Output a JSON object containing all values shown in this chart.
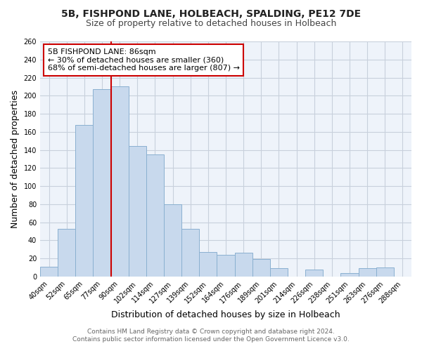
{
  "title": "5B, FISHPOND LANE, HOLBEACH, SPALDING, PE12 7DE",
  "subtitle": "Size of property relative to detached houses in Holbeach",
  "xlabel": "Distribution of detached houses by size in Holbeach",
  "ylabel": "Number of detached properties",
  "bar_color": "#c8d9ed",
  "bar_edge_color": "#8ab0d0",
  "bg_chart_color": "#eef3fa",
  "categories": [
    "40sqm",
    "52sqm",
    "65sqm",
    "77sqm",
    "90sqm",
    "102sqm",
    "114sqm",
    "127sqm",
    "139sqm",
    "152sqm",
    "164sqm",
    "176sqm",
    "189sqm",
    "201sqm",
    "214sqm",
    "226sqm",
    "238sqm",
    "251sqm",
    "263sqm",
    "276sqm",
    "288sqm"
  ],
  "values": [
    11,
    53,
    168,
    207,
    210,
    144,
    135,
    80,
    53,
    27,
    24,
    26,
    19,
    9,
    0,
    8,
    0,
    4,
    9,
    10,
    0
  ],
  "ylim": [
    0,
    260
  ],
  "yticks": [
    0,
    20,
    40,
    60,
    80,
    100,
    120,
    140,
    160,
    180,
    200,
    220,
    240,
    260
  ],
  "vline_x": 3.5,
  "vline_color": "#cc0000",
  "annotation_title": "5B FISHPOND LANE: 86sqm",
  "annotation_line1": "← 30% of detached houses are smaller (360)",
  "annotation_line2": "68% of semi-detached houses are larger (807) →",
  "footer1": "Contains HM Land Registry data © Crown copyright and database right 2024.",
  "footer2": "Contains public sector information licensed under the Open Government Licence v3.0.",
  "background_color": "#ffffff",
  "grid_color": "#c8d0dc",
  "title_fontsize": 10,
  "subtitle_fontsize": 9,
  "label_fontsize": 9,
  "tick_fontsize": 7,
  "footer_fontsize": 6.5,
  "annotation_fontsize": 8
}
